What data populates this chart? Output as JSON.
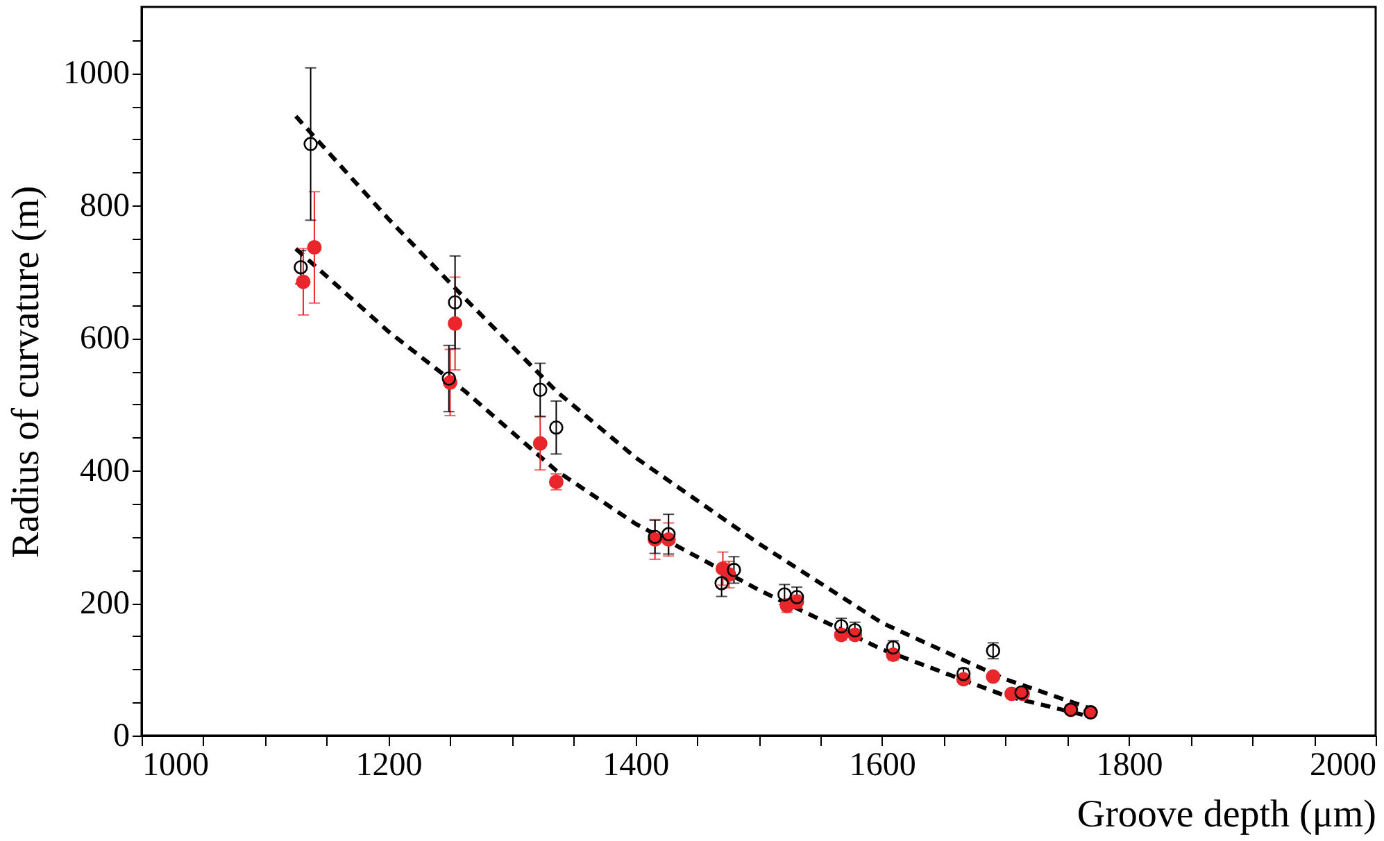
{
  "chart_data": {
    "type": "scatter",
    "xlabel": "Groove depth (μm)",
    "ylabel": "Radius of curvature (m)",
    "xlim": [
      1000,
      2000
    ],
    "ylim": [
      0,
      1100
    ],
    "xticks": [
      1000,
      {
        "value": 1050,
        "label": null
      },
      {
        "value": 1100,
        "label": null
      },
      {
        "value": 1150,
        "label": null
      },
      1200,
      {
        "value": 1250,
        "label": null
      },
      {
        "value": 1300,
        "label": null
      },
      {
        "value": 1350,
        "label": null
      },
      1400,
      {
        "value": 1450,
        "label": null
      },
      {
        "value": 1500,
        "label": null
      },
      {
        "value": 1550,
        "label": null
      },
      1600,
      {
        "value": 1650,
        "label": null
      },
      {
        "value": 1700,
        "label": null
      },
      {
        "value": 1750,
        "label": null
      },
      1800,
      {
        "value": 1850,
        "label": null
      },
      {
        "value": 1900,
        "label": null
      },
      {
        "value": 1950,
        "label": null
      },
      2000
    ],
    "yticks": [
      0,
      {
        "value": 50,
        "label": null
      },
      {
        "value": 100,
        "label": null
      },
      {
        "value": 150,
        "label": null
      },
      200,
      {
        "value": 250,
        "label": null
      },
      {
        "value": 300,
        "label": null
      },
      {
        "value": 350,
        "label": null
      },
      400,
      {
        "value": 450,
        "label": null
      },
      {
        "value": 500,
        "label": null
      },
      {
        "value": 550,
        "label": null
      },
      600,
      {
        "value": 650,
        "label": null
      },
      {
        "value": 700,
        "label": null
      },
      {
        "value": 750,
        "label": null
      },
      800,
      {
        "value": 850,
        "label": null
      },
      {
        "value": 900,
        "label": null
      },
      {
        "value": 950,
        "label": null
      },
      1000,
      {
        "value": 1050,
        "label": null
      }
    ],
    "grid": false,
    "marker": "circle",
    "series": [
      {
        "type": "line",
        "color": "#000000",
        "line_style": "dashed",
        "marker": "none",
        "x": [
          1125,
          1200,
          1262,
          1336,
          1400,
          1500,
          1600,
          1700,
          1770
        ],
        "values": [
          935,
          780,
          660,
          520,
          420,
          290,
          170,
          85,
          40
        ]
      },
      {
        "type": "line",
        "color": "#000000",
        "line_style": "dashed",
        "marker": "none",
        "x": [
          1125,
          1200,
          1262,
          1336,
          1400,
          1500,
          1600,
          1700,
          1770
        ],
        "values": [
          735,
          610,
          520,
          400,
          320,
          220,
          130,
          60,
          28
        ]
      },
      {
        "color": "#e8262b",
        "x": [
          1131,
          1140,
          1254,
          1250,
          1323,
          1336,
          1416,
          1427,
          1471,
          1476,
          1523,
          1531,
          1567,
          1578,
          1609,
          1666,
          1690,
          1705,
          1714,
          1753,
          1769
        ],
        "values": [
          685,
          737,
          622,
          533,
          441,
          383,
          296,
          296,
          252,
          243,
          196,
          202,
          152,
          152,
          122,
          85,
          89,
          63,
          63,
          39,
          35
        ],
        "errors": [
          50,
          84,
          70,
          50,
          40,
          12,
          30,
          25,
          25,
          20,
          10,
          10,
          8,
          8,
          8,
          null,
          null,
          null,
          null,
          null,
          null
        ]
      },
      {
        "color": "#000000",
        "x": [
          1129,
          1137,
          1254,
          1249,
          1323,
          1336,
          1416,
          1427,
          1470,
          1480,
          1521,
          1531,
          1567,
          1578,
          1609,
          1666,
          1690,
          1713,
          1753,
          1769
        ],
        "values": [
          707,
          893,
          654,
          539,
          522,
          465,
          300,
          304,
          230,
          250,
          213,
          209,
          165,
          159,
          133,
          93,
          128,
          65,
          39,
          35
        ],
        "errors": [
          25,
          115,
          70,
          50,
          40,
          40,
          25,
          30,
          20,
          20,
          15,
          15,
          12,
          12,
          10,
          8,
          12,
          null,
          null,
          null
        ]
      }
    ]
  }
}
